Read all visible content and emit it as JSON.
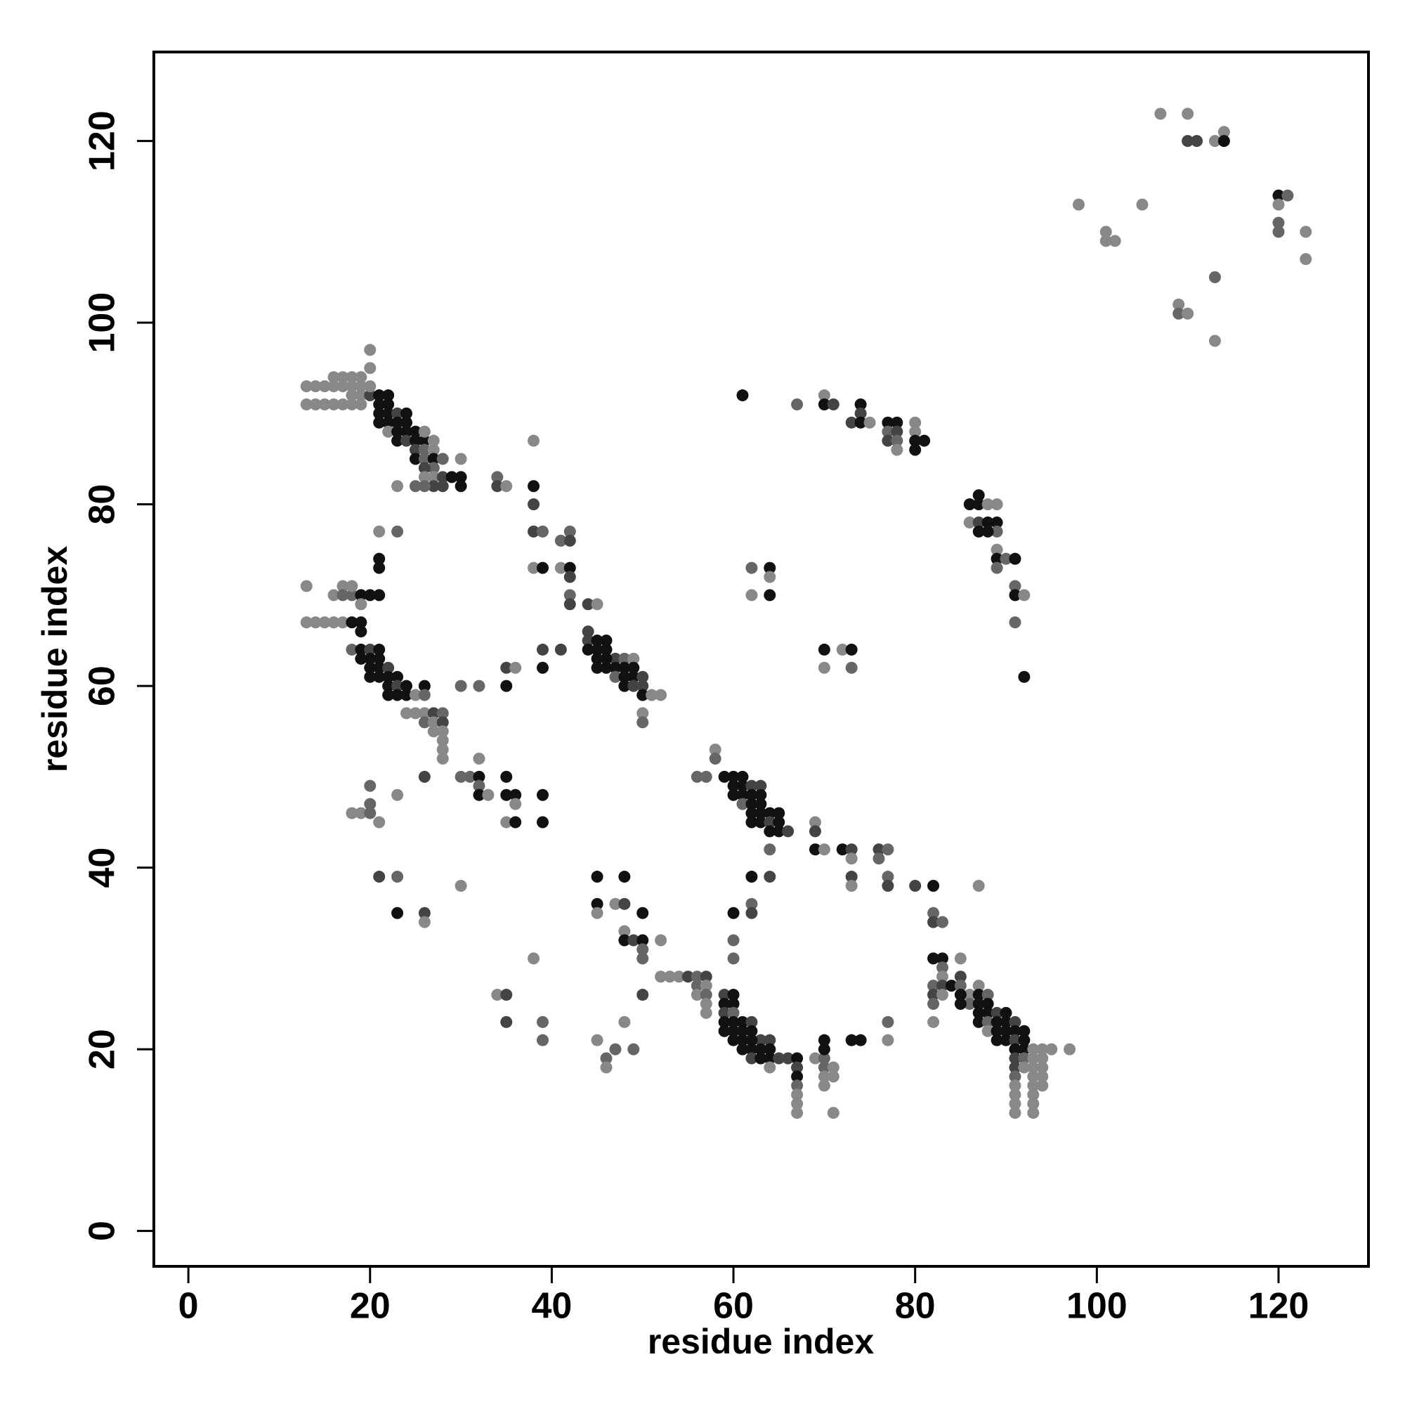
{
  "chart_data": {
    "type": "scatter",
    "x_label": "residue index",
    "y_label": "residue index",
    "xlim": [
      -3.8,
      129.9
    ],
    "ylim": [
      -3.9,
      129.8
    ],
    "xticks": [
      0,
      20,
      40,
      60,
      80,
      100,
      120
    ],
    "yticks": [
      0,
      20,
      40,
      60,
      80,
      100,
      120
    ],
    "x": [
      107,
      110,
      110,
      111,
      113,
      114,
      114,
      98,
      105,
      101,
      102,
      101,
      120,
      121,
      120,
      120,
      120,
      123,
      123,
      113,
      109,
      109,
      110,
      113,
      13,
      14,
      15,
      16,
      16,
      17,
      18,
      19,
      20,
      20,
      13,
      14,
      15,
      16,
      17,
      18,
      19,
      17,
      18,
      19,
      18,
      19,
      20,
      20,
      21,
      22,
      21,
      22,
      21,
      22,
      23,
      21,
      22,
      23,
      24,
      22,
      23,
      24,
      25,
      24,
      23,
      24,
      25,
      26,
      26,
      25,
      27,
      26,
      27,
      25,
      26,
      27,
      28,
      27,
      26,
      27,
      28,
      29,
      30,
      30,
      30,
      26,
      27,
      26,
      25,
      23,
      28,
      34,
      34,
      35,
      38,
      38,
      38,
      38,
      39,
      41,
      42,
      42,
      38,
      39,
      41,
      42,
      42,
      42,
      42,
      44,
      45,
      44,
      44,
      45,
      46,
      44,
      45,
      46,
      47,
      45,
      46,
      47,
      48,
      49,
      45,
      46,
      48,
      49,
      47,
      48,
      49,
      50,
      48,
      49,
      50,
      50,
      51,
      52,
      50,
      50,
      41,
      39,
      39,
      35,
      36,
      35,
      32,
      30,
      13,
      13,
      14,
      15,
      16,
      17,
      18,
      19,
      16,
      17,
      17,
      18,
      18,
      19,
      19,
      20,
      21,
      21,
      21,
      21,
      23,
      19,
      18,
      19,
      19,
      20,
      21,
      20,
      21,
      20,
      21,
      22,
      22,
      20,
      21,
      23,
      22,
      23,
      24,
      22,
      23,
      24,
      25,
      26,
      26,
      24,
      25,
      26,
      27,
      28,
      26,
      27,
      28,
      27,
      28,
      28,
      28,
      28,
      26,
      30,
      31,
      32,
      32,
      32,
      33,
      32,
      35,
      35,
      36,
      36,
      35,
      36,
      39,
      39,
      18,
      19,
      20,
      20,
      20,
      21,
      23,
      21,
      23,
      23,
      26,
      26,
      30,
      45,
      48,
      45,
      45,
      47,
      48,
      50,
      48,
      48,
      49,
      50,
      50,
      50,
      52,
      50,
      38,
      34,
      35,
      35,
      39,
      39,
      45,
      46,
      46,
      47,
      48,
      49,
      52,
      53,
      54,
      55,
      56,
      57,
      56,
      57,
      56,
      57,
      57,
      57,
      59,
      60,
      59,
      60,
      59,
      60,
      59,
      60,
      61,
      62,
      59,
      60,
      61,
      62,
      63,
      60,
      61,
      62,
      64,
      61,
      62,
      63,
      64,
      62,
      63,
      64,
      65,
      66,
      67,
      64,
      67,
      67,
      67,
      67,
      67,
      67,
      69,
      70,
      70,
      70,
      70,
      71,
      70,
      71,
      70,
      71,
      73,
      74,
      77,
      77,
      58,
      58,
      56,
      57,
      59,
      60,
      61,
      60,
      61,
      62,
      63,
      60,
      61,
      62,
      63,
      61,
      62,
      63,
      62,
      63,
      64,
      65,
      62,
      63,
      64,
      65,
      64,
      65,
      66,
      64,
      69,
      69,
      69,
      70,
      72,
      73,
      73,
      76,
      77,
      76,
      73,
      73,
      77,
      77,
      80,
      82,
      87,
      62,
      64,
      62,
      62,
      60,
      60,
      60,
      82,
      82,
      83,
      82,
      83,
      83,
      85,
      83,
      82,
      82,
      83,
      84,
      85,
      85,
      86,
      87,
      83,
      85,
      86,
      87,
      87,
      88,
      85,
      88,
      87,
      88,
      89,
      90,
      87,
      88,
      89,
      90,
      91,
      82,
      82,
      88,
      89,
      90,
      91,
      92,
      89,
      90,
      91,
      92,
      91,
      92,
      93,
      94,
      95,
      97,
      91,
      92,
      93,
      94,
      91,
      92,
      93,
      94,
      91,
      93,
      94,
      91,
      93,
      94,
      91,
      93,
      91,
      93,
      91,
      93,
      61,
      67,
      70,
      70,
      71,
      74,
      74,
      73,
      74,
      75,
      77,
      78,
      80,
      77,
      78,
      80,
      77,
      78,
      80,
      81,
      78,
      80,
      86,
      87,
      87,
      88,
      89,
      86,
      87,
      88,
      89,
      87,
      89,
      88,
      89,
      89,
      90,
      91,
      89,
      91,
      91,
      92,
      91,
      92,
      62,
      64,
      64,
      62,
      64,
      70,
      72,
      73,
      70,
      73
    ],
    "values": [
      123,
      123,
      120,
      120,
      120,
      121,
      120,
      113,
      113,
      110,
      109,
      109,
      114,
      114,
      113,
      111,
      110,
      110,
      107,
      105,
      102,
      101,
      101,
      98,
      93,
      93,
      93,
      93,
      94,
      94,
      94,
      94,
      95,
      97,
      91,
      91,
      91,
      91,
      91,
      91,
      91,
      93,
      93,
      93,
      92,
      92,
      92,
      93,
      92,
      92,
      91,
      91,
      90,
      90,
      90,
      89,
      89,
      89,
      90,
      88,
      88,
      88,
      88,
      89,
      87,
      87,
      87,
      87,
      88,
      86,
      87,
      86,
      86,
      85,
      85,
      85,
      85,
      84,
      84,
      83,
      83,
      83,
      83,
      85,
      82,
      83,
      82,
      82,
      82,
      82,
      82,
      83,
      82,
      82,
      87,
      82,
      80,
      77,
      77,
      76,
      77,
      76,
      73,
      73,
      73,
      73,
      72,
      70,
      69,
      69,
      69,
      66,
      65,
      65,
      65,
      64,
      64,
      64,
      63,
      63,
      63,
      62,
      63,
      63,
      62,
      62,
      62,
      62,
      61,
      61,
      61,
      61,
      60,
      60,
      60,
      59,
      59,
      59,
      57,
      56,
      64,
      64,
      62,
      62,
      62,
      60,
      60,
      60,
      71,
      67,
      67,
      67,
      67,
      67,
      67,
      67,
      70,
      71,
      70,
      70,
      71,
      70,
      69,
      70,
      70,
      74,
      73,
      77,
      77,
      66,
      64,
      64,
      63,
      64,
      64,
      63,
      63,
      62,
      62,
      62,
      61,
      61,
      61,
      61,
      60,
      60,
      60,
      59,
      59,
      59,
      59,
      60,
      59,
      57,
      57,
      57,
      57,
      57,
      56,
      56,
      56,
      55,
      55,
      54,
      53,
      52,
      50,
      50,
      50,
      50,
      49,
      48,
      48,
      52,
      50,
      48,
      48,
      47,
      45,
      45,
      48,
      45,
      46,
      46,
      46,
      47,
      49,
      45,
      48,
      39,
      39,
      35,
      35,
      34,
      38,
      39,
      39,
      36,
      35,
      36,
      36,
      35,
      33,
      32,
      32,
      32,
      31,
      30,
      32,
      26,
      30,
      26,
      26,
      23,
      23,
      21,
      21,
      19,
      18,
      20,
      23,
      20,
      28,
      28,
      28,
      28,
      28,
      28,
      27,
      27,
      26,
      26,
      25,
      24,
      26,
      26,
      25,
      25,
      24,
      24,
      23,
      23,
      23,
      23,
      22,
      22,
      22,
      22,
      21,
      21,
      21,
      21,
      21,
      20,
      20,
      20,
      20,
      19,
      19,
      19,
      19,
      19,
      19,
      18,
      18,
      17,
      16,
      15,
      14,
      13,
      19,
      19,
      21,
      20,
      18,
      18,
      17,
      17,
      16,
      13,
      21,
      21,
      23,
      21,
      53,
      52,
      50,
      50,
      50,
      50,
      50,
      49,
      49,
      49,
      49,
      48,
      48,
      48,
      48,
      47,
      47,
      47,
      46,
      46,
      46,
      46,
      45,
      45,
      45,
      45,
      44,
      44,
      44,
      42,
      45,
      44,
      42,
      42,
      42,
      42,
      41,
      42,
      42,
      41,
      39,
      38,
      39,
      38,
      38,
      38,
      38,
      39,
      39,
      36,
      35,
      35,
      32,
      30,
      35,
      34,
      34,
      30,
      30,
      29,
      30,
      28,
      27,
      26,
      27,
      27,
      28,
      27,
      26,
      27,
      26,
      26,
      25,
      26,
      25,
      26,
      25,
      25,
      24,
      24,
      24,
      24,
      23,
      23,
      23,
      23,
      23,
      25,
      23,
      22,
      22,
      22,
      22,
      22,
      21,
      21,
      21,
      21,
      20,
      20,
      20,
      20,
      20,
      20,
      19,
      19,
      19,
      19,
      18,
      18,
      18,
      18,
      17,
      17,
      17,
      16,
      16,
      16,
      15,
      15,
      14,
      14,
      13,
      13,
      92,
      91,
      92,
      91,
      91,
      91,
      90,
      89,
      89,
      89,
      89,
      89,
      89,
      88,
      88,
      88,
      87,
      87,
      87,
      87,
      86,
      86,
      80,
      80,
      81,
      80,
      80,
      78,
      78,
      78,
      78,
      77,
      77,
      77,
      75,
      74,
      74,
      74,
      73,
      71,
      70,
      70,
      67,
      61,
      73,
      73,
      72,
      70,
      70,
      64,
      64,
      64,
      62,
      62
    ],
    "colors": [
      "#888",
      "#888",
      "#444",
      "#444",
      "#888",
      "#888",
      "#111",
      "#888",
      "#888",
      "#888",
      "#888",
      "#888",
      "#111",
      "#666",
      "#888",
      "#666",
      "#666",
      "#888",
      "#888",
      "#666",
      "#888",
      "#666",
      "#888",
      "#888",
      "#888",
      "#888",
      "#888",
      "#888",
      "#888",
      "#888",
      "#888",
      "#888",
      "#888",
      "#888",
      "#888",
      "#888",
      "#888",
      "#888",
      "#888",
      "#888",
      "#888",
      "#888",
      "#888",
      "#888",
      "#888",
      "#888",
      "#444",
      "#888",
      "#111",
      "#111",
      "#111",
      "#111",
      "#111",
      "#111",
      "#444",
      "#111",
      "#111",
      "#111",
      "#111",
      "#888",
      "#111",
      "#111",
      "#111",
      "#111",
      "#111",
      "#444",
      "#111",
      "#111",
      "#888",
      "#444",
      "#888",
      "#666",
      "#888",
      "#111",
      "#666",
      "#111",
      "#666",
      "#666",
      "#444",
      "#888",
      "#444",
      "#111",
      "#111",
      "#888",
      "#111",
      "#888",
      "#444",
      "#666",
      "#666",
      "#888",
      "#444",
      "#666",
      "#444",
      "#888",
      "#888",
      "#111",
      "#444",
      "#444",
      "#666",
      "#666",
      "#666",
      "#444",
      "#888",
      "#111",
      "#888",
      "#111",
      "#444",
      "#666",
      "#444",
      "#444",
      "#888",
      "#444",
      "#444",
      "#111",
      "#111",
      "#111",
      "#111",
      "#111",
      "#444",
      "#111",
      "#111",
      "#111",
      "#666",
      "#888",
      "#111",
      "#111",
      "#111",
      "#111",
      "#666",
      "#111",
      "#111",
      "#444",
      "#111",
      "#444",
      "#444",
      "#111",
      "#888",
      "#888",
      "#888",
      "#666",
      "#444",
      "#444",
      "#111",
      "#444",
      "#888",
      "#111",
      "#666",
      "#666",
      "#888",
      "#888",
      "#888",
      "#888",
      "#888",
      "#888",
      "#111",
      "#111",
      "#888",
      "#888",
      "#666",
      "#666",
      "#888",
      "#111",
      "#888",
      "#111",
      "#111",
      "#111",
      "#111",
      "#888",
      "#666",
      "#111",
      "#666",
      "#111",
      "#111",
      "#444",
      "#111",
      "#111",
      "#111",
      "#111",
      "#111",
      "#444",
      "#111",
      "#111",
      "#111",
      "#111",
      "#111",
      "#444",
      "#111",
      "#111",
      "#111",
      "#111",
      "#888",
      "#111",
      "#666",
      "#888",
      "#888",
      "#888",
      "#444",
      "#666",
      "#666",
      "#888",
      "#444",
      "#888",
      "#888",
      "#888",
      "#888",
      "#888",
      "#444",
      "#666",
      "#666",
      "#111",
      "#666",
      "#111",
      "#888",
      "#888",
      "#111",
      "#111",
      "#111",
      "#888",
      "#888",
      "#111",
      "#111",
      "#111",
      "#888",
      "#888",
      "#666",
      "#666",
      "#666",
      "#888",
      "#888",
      "#444",
      "#666",
      "#111",
      "#444",
      "#888",
      "#888",
      "#111",
      "#111",
      "#111",
      "#888",
      "#888",
      "#444",
      "#111",
      "#888",
      "#111",
      "#444",
      "#111",
      "#666",
      "#666",
      "#888",
      "#444",
      "#888",
      "#888",
      "#444",
      "#444",
      "#666",
      "#666",
      "#888",
      "#666",
      "#888",
      "#666",
      "#888",
      "#666",
      "#888",
      "#888",
      "#888",
      "#444",
      "#666",
      "#444",
      "#666",
      "#888",
      "#888",
      "#666",
      "#888",
      "#888",
      "#444",
      "#111",
      "#111",
      "#111",
      "#444",
      "#666",
      "#111",
      "#111",
      "#111",
      "#444",
      "#111",
      "#111",
      "#111",
      "#111",
      "#444",
      "#111",
      "#111",
      "#111",
      "#444",
      "#111",
      "#111",
      "#111",
      "#111",
      "#444",
      "#111",
      "#111",
      "#444",
      "#444",
      "#111",
      "#888",
      "#444",
      "#111",
      "#666",
      "#888",
      "#888",
      "#888",
      "#888",
      "#666",
      "#111",
      "#111",
      "#666",
      "#888",
      "#888",
      "#888",
      "#888",
      "#888",
      "#111",
      "#111",
      "#666",
      "#888",
      "#888",
      "#666",
      "#666",
      "#666",
      "#111",
      "#111",
      "#111",
      "#111",
      "#111",
      "#444",
      "#444",
      "#111",
      "#111",
      "#111",
      "#111",
      "#666",
      "#111",
      "#111",
      "#111",
      "#111",
      "#111",
      "#111",
      "#111",
      "#111",
      "#444",
      "#111",
      "#111",
      "#111",
      "#444",
      "#666",
      "#888",
      "#444",
      "#111",
      "#888",
      "#111",
      "#444",
      "#888",
      "#444",
      "#666",
      "#666",
      "#444",
      "#888",
      "#666",
      "#444",
      "#444",
      "#111",
      "#888",
      "#111",
      "#444",
      "#666",
      "#444",
      "#111",
      "#666",
      "#666",
      "#666",
      "#444",
      "#666",
      "#111",
      "#111",
      "#666",
      "#888",
      "#888",
      "#666",
      "#444",
      "#444",
      "#111",
      "#444",
      "#666",
      "#888",
      "#888",
      "#888",
      "#111",
      "#666",
      "#111",
      "#111",
      "#666",
      "#111",
      "#111",
      "#111",
      "#111",
      "#444",
      "#111",
      "#111",
      "#666",
      "#111",
      "#111",
      "#444",
      "#666",
      "#888",
      "#888",
      "#111",
      "#111",
      "#111",
      "#111",
      "#111",
      "#111",
      "#444",
      "#111",
      "#111",
      "#111",
      "#888",
      "#888",
      "#888",
      "#888",
      "#444",
      "#666",
      "#888",
      "#888",
      "#444",
      "#888",
      "#888",
      "#888",
      "#666",
      "#888",
      "#888",
      "#888",
      "#888",
      "#888",
      "#888",
      "#888",
      "#888",
      "#888",
      "#888",
      "#888",
      "#111",
      "#666",
      "#888",
      "#111",
      "#444",
      "#111",
      "#444",
      "#444",
      "#111",
      "#888",
      "#111",
      "#111",
      "#888",
      "#666",
      "#444",
      "#888",
      "#444",
      "#666",
      "#111",
      "#111",
      "#888",
      "#111",
      "#111",
      "#111",
      "#111",
      "#888",
      "#888",
      "#888",
      "#444",
      "#111",
      "#111",
      "#111",
      "#666",
      "#111",
      "#888",
      "#111",
      "#666",
      "#111",
      "#666",
      "#666",
      "#111",
      "#888",
      "#666",
      "#111",
      "#666",
      "#111",
      "#888",
      "#888",
      "#111",
      "#111",
      "#888",
      "#111",
      "#888",
      "#666"
    ]
  }
}
